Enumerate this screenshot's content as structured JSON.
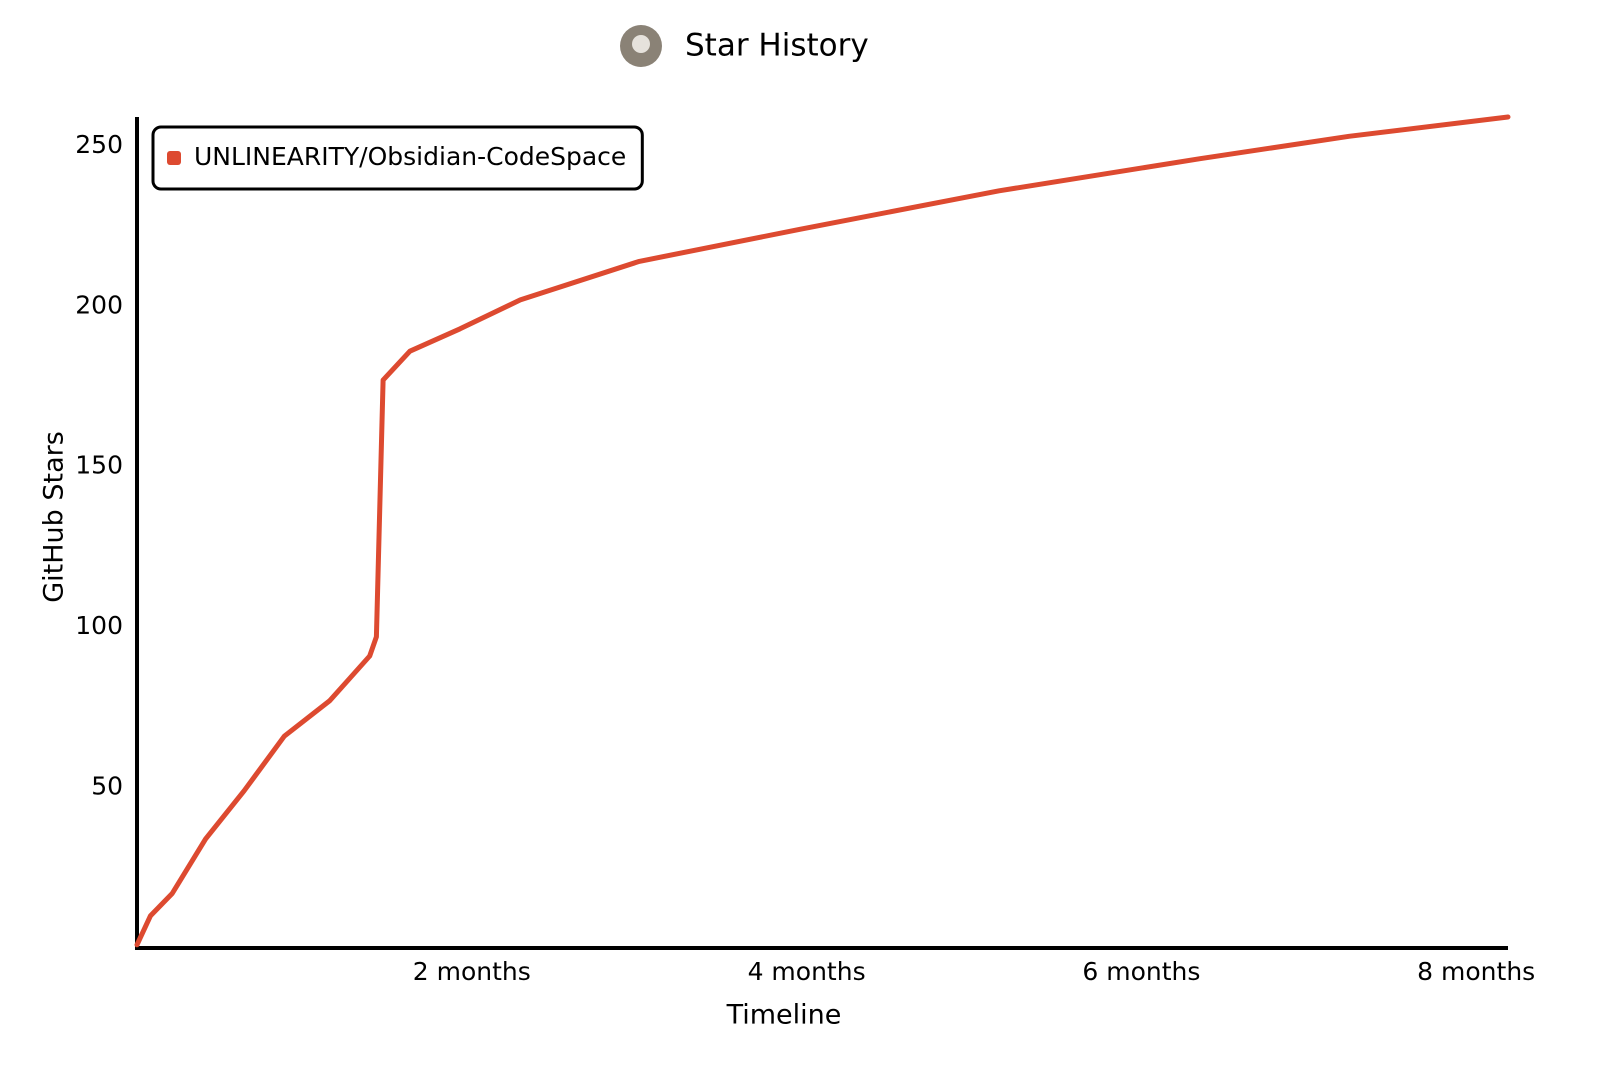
{
  "chart_data": {
    "type": "line",
    "title": "Star History",
    "x_label": "Timeline",
    "y_label": "GitHub Stars",
    "x": [
      0,
      0.08,
      0.21,
      0.41,
      0.64,
      0.88,
      1.15,
      1.27,
      1.39,
      1.43,
      1.47,
      1.63,
      1.93,
      2.29,
      3.0,
      3.96,
      5.15,
      6.35,
      7.24,
      8.19
    ],
    "series": [
      {
        "name": "UNLINEARITY/Obsidian-CodeSpace",
        "color": "#dd4a30",
        "values": [
          1,
          10,
          17,
          34,
          49,
          66,
          77,
          84,
          91,
          97,
          177,
          186,
          193,
          202,
          214,
          224,
          236,
          246,
          253,
          259
        ]
      }
    ],
    "xlim": [
      0,
      8.19
    ],
    "xticks": [
      {
        "value": 2,
        "label": "2 months"
      },
      {
        "value": 4,
        "label": "4 months"
      },
      {
        "value": 6,
        "label": "6 months"
      },
      {
        "value": 8,
        "label": "8 months"
      }
    ],
    "ylim": [
      0,
      259
    ],
    "yticks": [
      50,
      100,
      150,
      200,
      250
    ],
    "grid": false,
    "legend": "upper left"
  }
}
